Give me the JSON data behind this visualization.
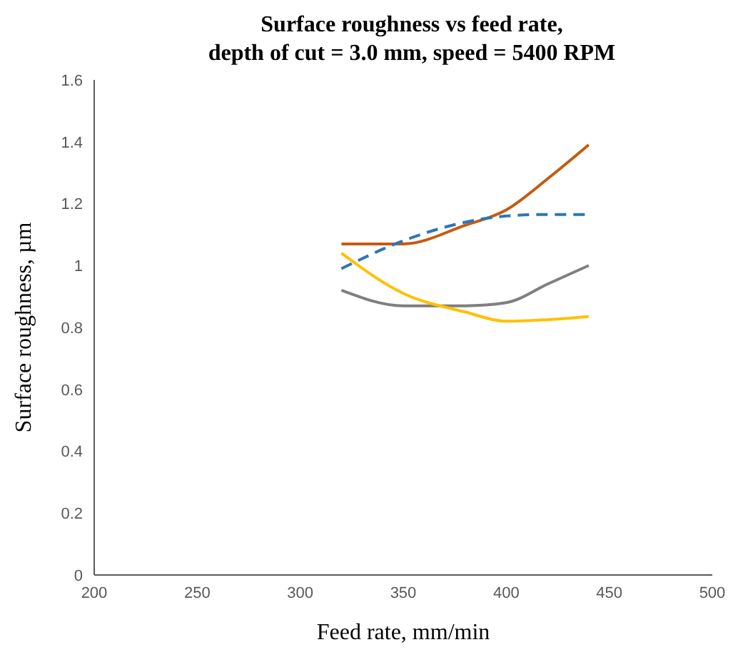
{
  "chart_data": {
    "type": "line",
    "title": "Surface roughness vs feed rate,\ndepth of cut = 3.0 mm, speed = 5400 RPM",
    "xlabel": "Feed rate, mm/min",
    "ylabel": "Surface roughness, µm",
    "x": [
      320,
      350,
      380,
      400,
      420,
      440
    ],
    "series": [
      {
        "color": "#c55a11",
        "values": [
          1.07,
          1.07,
          1.13,
          1.18,
          1.28,
          1.39
        ],
        "line_style": "solid"
      },
      {
        "color": "#2e75b6",
        "values": [
          0.99,
          1.08,
          1.14,
          1.16,
          1.165,
          1.165
        ],
        "line_style": "dashed"
      },
      {
        "color": "#7f7f7f",
        "values": [
          0.92,
          0.87,
          0.87,
          0.88,
          0.94,
          1.0
        ],
        "line_style": "solid"
      },
      {
        "color": "#ffc000",
        "values": [
          1.04,
          0.91,
          0.85,
          0.82,
          0.825,
          0.835
        ],
        "line_style": "solid"
      }
    ],
    "xlim": [
      200,
      500
    ],
    "xticks": [
      200,
      250,
      300,
      350,
      400,
      450,
      500
    ],
    "ylim": [
      0,
      1.6
    ],
    "yticks": [
      0,
      0.2,
      0.4,
      0.6,
      0.8,
      1,
      1.2,
      1.4,
      1.6
    ],
    "grid": false,
    "legend": false,
    "marker": "none"
  }
}
